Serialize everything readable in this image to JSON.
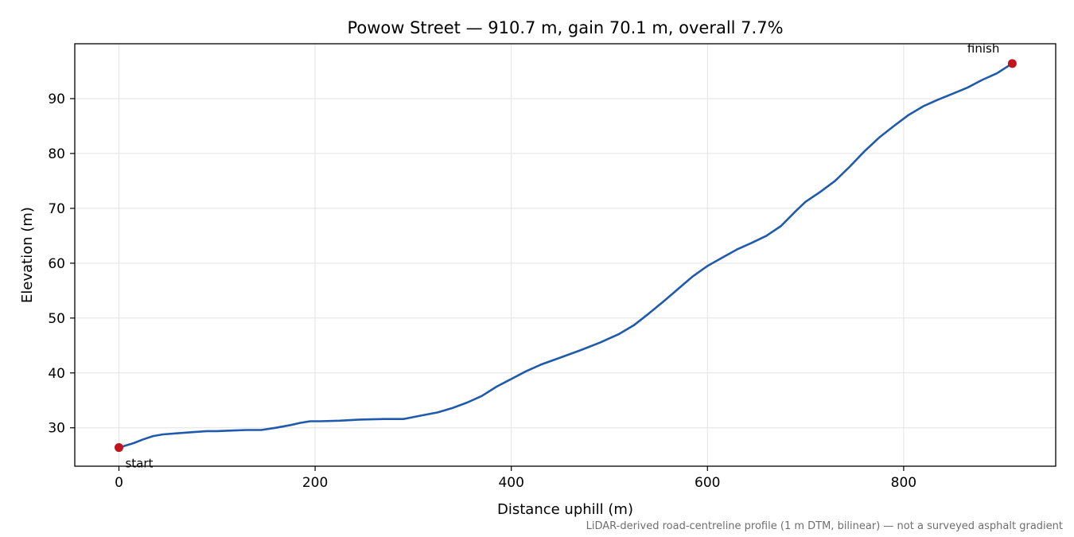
{
  "chart_data": {
    "type": "line",
    "title": "Powow Street — 910.7 m, gain 70.1 m, overall 7.7%",
    "xlabel": "Distance uphill (m)",
    "ylabel": "Elevation (m)",
    "xlim": [
      -45,
      955
    ],
    "ylim": [
      23,
      100
    ],
    "xticks": [
      0,
      200,
      400,
      600,
      800
    ],
    "yticks": [
      30,
      40,
      50,
      60,
      70,
      80,
      90
    ],
    "grid": true,
    "legend": "none",
    "series": [
      {
        "color": "#1f5aad",
        "x": [
          0,
          15,
          25,
          35,
          45,
          60,
          75,
          90,
          100,
          115,
          130,
          145,
          160,
          175,
          185,
          195,
          205,
          225,
          245,
          270,
          290,
          310,
          325,
          340,
          355,
          370,
          385,
          400,
          415,
          430,
          450,
          470,
          490,
          510,
          525,
          540,
          555,
          570,
          585,
          600,
          615,
          630,
          645,
          660,
          675,
          690,
          700,
          715,
          730,
          745,
          760,
          775,
          790,
          805,
          820,
          835,
          850,
          865,
          880,
          895,
          910.7
        ],
        "y": [
          26.4,
          27.2,
          27.9,
          28.5,
          28.8,
          29.0,
          29.2,
          29.4,
          29.4,
          29.5,
          29.6,
          29.6,
          30.0,
          30.5,
          30.9,
          31.2,
          31.2,
          31.3,
          31.5,
          31.6,
          31.6,
          32.3,
          32.8,
          33.6,
          34.6,
          35.8,
          37.5,
          38.9,
          40.3,
          41.5,
          42.8,
          44.1,
          45.5,
          47.1,
          48.7,
          50.8,
          53.0,
          55.3,
          57.6,
          59.5,
          61.0,
          62.5,
          63.7,
          65.0,
          66.8,
          69.5,
          71.2,
          73.0,
          75.0,
          77.6,
          80.4,
          82.9,
          85.0,
          87.0,
          88.6,
          89.8,
          90.9,
          92.0,
          93.4,
          94.6,
          96.4
        ]
      }
    ],
    "markers": [
      {
        "label": "start",
        "x": 0,
        "y": 26.4,
        "color": "#c0141e"
      },
      {
        "label": "finish",
        "x": 910.7,
        "y": 96.4,
        "color": "#c0141e"
      }
    ],
    "footnote": "LiDAR-derived road-centreline profile (1 m DTM, bilinear) — not a surveyed asphalt gradient"
  }
}
